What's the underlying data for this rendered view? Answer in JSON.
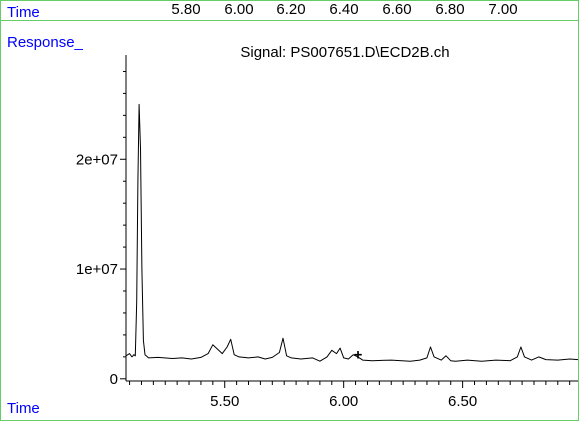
{
  "header": {
    "time_label": "Time",
    "time_ticks": [
      "5.80",
      "6.00",
      "6.20",
      "6.40",
      "6.60",
      "6.80",
      "7.00"
    ],
    "response_label": "Response_",
    "signal_title": "Signal: PS007651.D\\ECD2B.ch"
  },
  "footer": {
    "time_label": "Time"
  },
  "colors": {
    "label_blue": "#0000ff",
    "frame_green": "#66cc66",
    "trace": "#000000"
  },
  "chart_data": {
    "type": "line",
    "title": "Signal: PS007651.D\\ECD2B.ch",
    "xlabel": "Time",
    "ylabel": "Response_",
    "xlim": [
      5.085,
      6.985
    ],
    "ylim": [
      -200000.0,
      29500000.0
    ],
    "x_ticks": [
      5.5,
      6.0,
      6.5
    ],
    "x_tick_labels": [
      "5.50",
      "6.00",
      "6.50"
    ],
    "y_ticks": [
      0,
      10000000,
      20000000
    ],
    "y_tick_labels": [
      "0",
      "1e+07",
      "2e+07"
    ],
    "grid": false,
    "marker": {
      "x": 6.06,
      "y": 2200000,
      "symbol": "+"
    },
    "series": [
      {
        "x": [
          5.085,
          5.1,
          5.11,
          5.118,
          5.124,
          5.13,
          5.135,
          5.14,
          5.146,
          5.152,
          5.158,
          5.165,
          5.18,
          5.22,
          5.28,
          5.32,
          5.36,
          5.4,
          5.43,
          5.45,
          5.47,
          5.49,
          5.51,
          5.525,
          5.54,
          5.56,
          5.6,
          5.64,
          5.67,
          5.7,
          5.73,
          5.745,
          5.76,
          5.78,
          5.82,
          5.87,
          5.9,
          5.93,
          5.95,
          5.97,
          5.985,
          6.0,
          6.02,
          6.04,
          6.06,
          6.08,
          6.12,
          6.2,
          6.28,
          6.32,
          6.35,
          6.365,
          6.38,
          6.41,
          6.43,
          6.45,
          6.47,
          6.52,
          6.58,
          6.64,
          6.7,
          6.73,
          6.745,
          6.76,
          6.79,
          6.82,
          6.85,
          6.9,
          6.95,
          6.985
        ],
        "values": [
          2100000,
          2300000,
          2000000,
          2200000,
          2100000,
          7000000,
          18000000,
          25000000,
          21000000,
          10000000,
          3500000,
          2200000,
          1900000,
          1950000,
          1850000,
          1900000,
          1800000,
          1950000,
          2300000,
          3100000,
          2700000,
          2300000,
          2900000,
          3600000,
          2200000,
          2000000,
          1900000,
          2000000,
          1800000,
          1950000,
          2400000,
          3700000,
          2100000,
          1900000,
          1800000,
          1900000,
          1600000,
          2000000,
          2600000,
          2300000,
          2800000,
          1900000,
          1800000,
          2200000,
          2000000,
          1700000,
          1650000,
          1700000,
          1600000,
          1700000,
          1900000,
          2900000,
          2000000,
          1700000,
          2100000,
          1650000,
          1600000,
          1700000,
          1600000,
          1700000,
          1650000,
          2000000,
          2900000,
          2000000,
          1700000,
          2000000,
          1750000,
          1700000,
          1800000,
          1750000
        ]
      }
    ]
  }
}
